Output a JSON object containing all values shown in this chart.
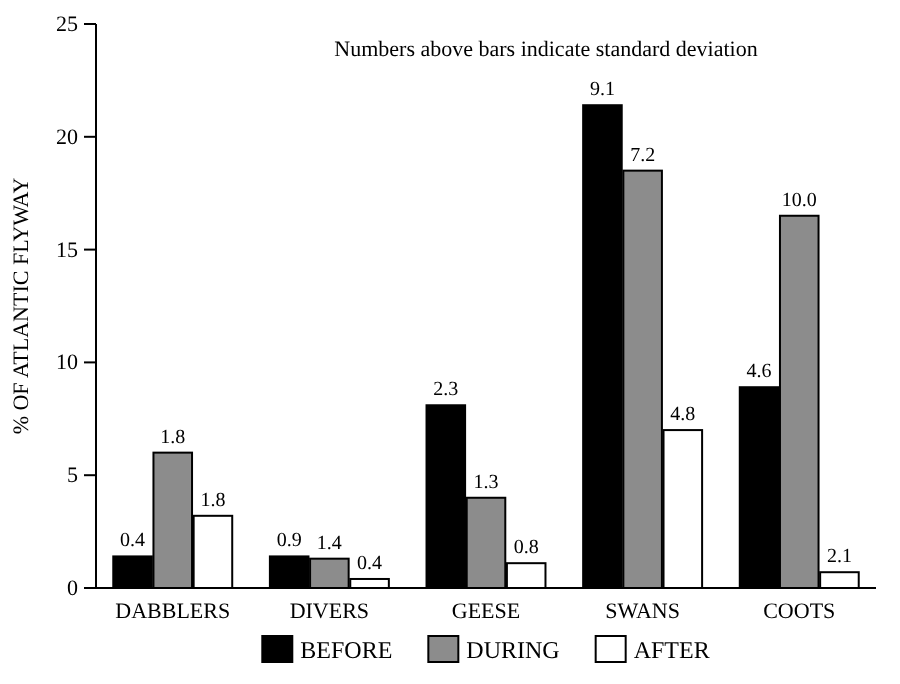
{
  "chart_data": {
    "type": "bar",
    "ylabel": "% OF ATLANTIC FLYWAY",
    "categories": [
      "DABBLERS",
      "DIVERS",
      "GEESE",
      "SWANS",
      "COOTS"
    ],
    "series": [
      {
        "name": "BEFORE",
        "color": "#000000",
        "values": [
          1.4,
          1.4,
          8.1,
          21.4,
          8.9
        ]
      },
      {
        "name": "DURING",
        "color": "#8c8c8c",
        "values": [
          6.0,
          1.3,
          4.0,
          18.5,
          16.5
        ]
      },
      {
        "name": "AFTER",
        "color": "#ffffff",
        "values": [
          3.2,
          0.4,
          1.1,
          7.0,
          0.7
        ]
      }
    ],
    "ylim": [
      0,
      25
    ],
    "yticks": [
      0,
      5,
      10,
      15,
      20,
      25
    ],
    "legend": "bottom",
    "grid": false,
    "annotations": [
      "Numbers above bars indicate standard deviation",
      "0.4",
      "1.8",
      "1.8",
      "0.9",
      "1.4",
      "0.4",
      "2.3",
      "1.3",
      "0.8",
      "9.1",
      "7.2",
      "4.8",
      "4.6",
      "10.0",
      "2.1"
    ]
  }
}
